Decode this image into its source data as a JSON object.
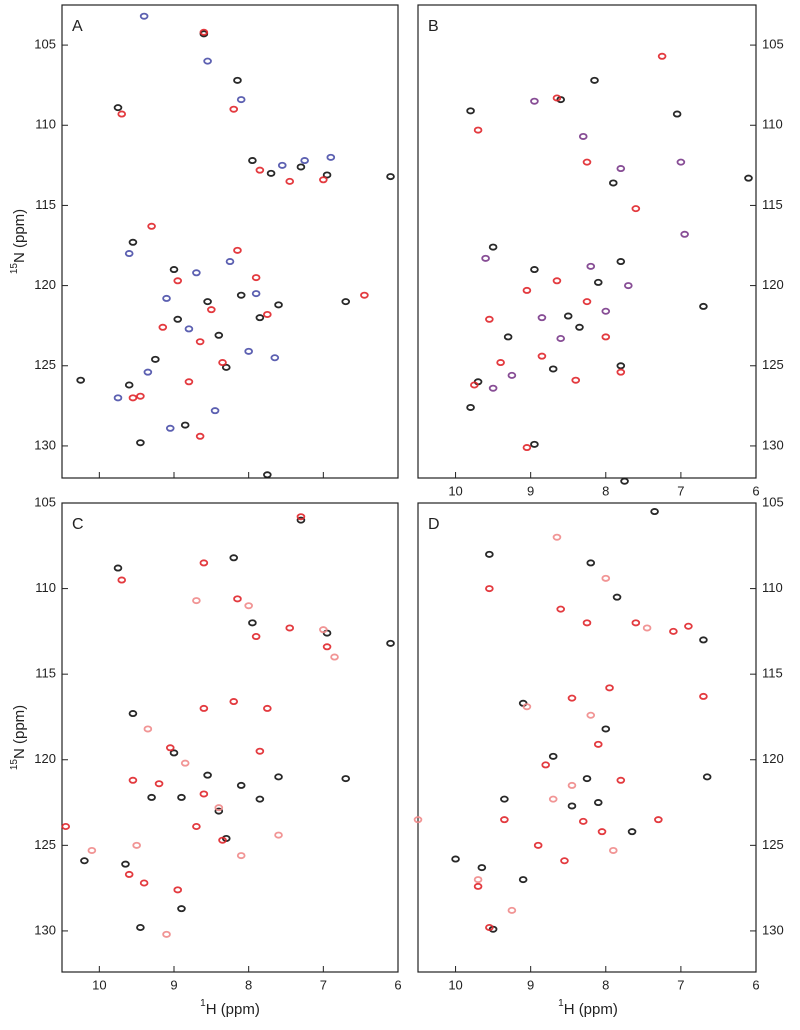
{
  "chart_data": [
    {
      "type": "scatter",
      "panel_label": "A",
      "xlim": [
        10.5,
        6
      ],
      "ylim": [
        132,
        102.5
      ],
      "xticks": [
        10,
        9,
        8,
        7,
        6
      ],
      "yticks": [
        105,
        110,
        115,
        120,
        125,
        130
      ],
      "ytick_side": "left",
      "show_xtick_labels": false,
      "ylabel_sup": "15",
      "ylabel": "N (ppm)",
      "series": [
        {
          "color": "#111111",
          "x": [
            9.75,
            8.6,
            8.15,
            7.95,
            7.7,
            7.3,
            6.95,
            6.1,
            9.55,
            9.0,
            8.55,
            8.1,
            7.85,
            8.4,
            9.25,
            9.6,
            10.25,
            8.85,
            8.3,
            7.6,
            6.7,
            9.45,
            8.95,
            7.75
          ],
          "values": [
            108.9,
            104.3,
            107.2,
            112.2,
            113.0,
            112.6,
            113.1,
            113.2,
            117.3,
            119.0,
            121.0,
            120.6,
            122.0,
            123.1,
            124.6,
            126.2,
            125.9,
            128.7,
            125.1,
            121.2,
            121.0,
            129.8,
            122.1,
            131.8
          ]
        },
        {
          "color": "#e0252a",
          "x": [
            9.7,
            8.6,
            8.2,
            7.85,
            7.45,
            7.0,
            6.45,
            9.3,
            8.95,
            8.5,
            8.15,
            7.75,
            8.65,
            9.15,
            9.55,
            8.35,
            8.8,
            7.9,
            9.45,
            8.65
          ],
          "values": [
            109.3,
            104.2,
            109.0,
            112.8,
            113.5,
            113.4,
            120.6,
            116.3,
            119.7,
            121.5,
            117.8,
            121.8,
            123.5,
            122.6,
            127.0,
            124.8,
            126.0,
            119.5,
            126.9,
            129.4
          ]
        },
        {
          "color": "#4a4fa8",
          "x": [
            9.4,
            8.55,
            8.1,
            7.55,
            7.25,
            6.9,
            9.6,
            9.1,
            8.7,
            8.25,
            7.9,
            8.0,
            8.8,
            9.35,
            9.75,
            8.45,
            7.65,
            9.05
          ],
          "values": [
            103.2,
            106.0,
            108.4,
            112.5,
            112.2,
            112.0,
            118.0,
            120.8,
            119.2,
            118.5,
            120.5,
            124.1,
            122.7,
            125.4,
            127.0,
            127.8,
            124.5,
            128.9
          ]
        }
      ]
    },
    {
      "type": "scatter",
      "panel_label": "B",
      "xlim": [
        10.5,
        6
      ],
      "ylim": [
        132,
        102.5
      ],
      "xticks": [
        10,
        9,
        8,
        7,
        6
      ],
      "yticks": [
        105,
        110,
        115,
        120,
        125,
        130
      ],
      "ytick_side": "right",
      "show_xtick_labels": true,
      "series": [
        {
          "color": "#111111",
          "x": [
            9.8,
            8.6,
            8.15,
            7.9,
            7.05,
            6.1,
            9.5,
            8.95,
            8.5,
            8.1,
            7.8,
            8.35,
            9.3,
            9.7,
            9.8,
            8.7,
            7.8,
            6.7,
            7.75,
            8.95
          ],
          "values": [
            109.1,
            108.4,
            107.2,
            113.6,
            109.3,
            113.3,
            117.6,
            119.0,
            121.9,
            119.8,
            118.5,
            122.6,
            123.2,
            126.0,
            127.6,
            125.2,
            125.0,
            121.3,
            132.2,
            129.9
          ]
        },
        {
          "color": "#e0252a",
          "x": [
            9.7,
            8.65,
            8.25,
            7.6,
            7.25,
            9.55,
            9.05,
            8.65,
            8.25,
            8.0,
            8.4,
            9.4,
            9.75,
            8.85,
            7.8,
            9.05
          ],
          "values": [
            110.3,
            108.3,
            112.3,
            115.2,
            105.7,
            122.1,
            120.3,
            119.7,
            121.0,
            123.2,
            125.9,
            124.8,
            126.2,
            124.4,
            125.4,
            130.1
          ]
        },
        {
          "color": "#7a3a8a",
          "x": [
            8.95,
            8.3,
            7.8,
            7.0,
            6.95,
            9.6,
            8.85,
            8.2,
            8.0,
            7.7,
            8.6,
            9.25,
            9.5
          ],
          "values": [
            108.5,
            110.7,
            112.7,
            112.3,
            116.8,
            118.3,
            122.0,
            118.8,
            121.6,
            120.0,
            123.3,
            125.6,
            126.4
          ]
        }
      ]
    },
    {
      "type": "scatter",
      "panel_label": "C",
      "xlim": [
        10.5,
        6
      ],
      "ylim": [
        132.4,
        105
      ],
      "xticks": [
        10,
        9,
        8,
        7,
        6
      ],
      "yticks": [
        105,
        110,
        115,
        120,
        125,
        130
      ],
      "ytick_side": "left",
      "show_xtick_labels": true,
      "ylabel_sup": "15",
      "ylabel": "N (ppm)",
      "xlabel_sup": "1",
      "xlabel": "H  (ppm)",
      "series": [
        {
          "color": "#111111",
          "x": [
            9.75,
            8.2,
            7.95,
            7.3,
            6.95,
            6.1,
            9.55,
            9.0,
            8.55,
            8.1,
            7.85,
            8.4,
            9.3,
            9.65,
            10.2,
            8.9,
            8.3,
            7.6,
            6.7,
            9.45,
            8.9
          ],
          "values": [
            108.8,
            108.2,
            112.0,
            106.0,
            112.6,
            113.2,
            117.3,
            119.6,
            120.9,
            121.5,
            122.3,
            123.0,
            122.2,
            126.1,
            125.9,
            128.7,
            124.6,
            121.0,
            121.1,
            129.8,
            122.2
          ]
        },
        {
          "color": "#e0252a",
          "x": [
            9.7,
            8.6,
            8.15,
            7.9,
            7.45,
            7.3,
            6.95,
            9.55,
            9.05,
            8.6,
            8.2,
            7.75,
            8.7,
            9.2,
            9.6,
            8.35,
            8.95,
            7.85,
            9.4,
            8.6,
            10.45
          ],
          "values": [
            109.5,
            108.5,
            110.6,
            112.8,
            112.3,
            105.8,
            113.4,
            121.2,
            119.3,
            117.0,
            116.6,
            117.0,
            123.9,
            121.4,
            126.7,
            124.7,
            127.6,
            119.5,
            127.2,
            122.0,
            123.9
          ]
        },
        {
          "color": "#f08a8a",
          "x": [
            8.7,
            8.0,
            7.0,
            6.85,
            9.35,
            8.85,
            8.4,
            7.6,
            8.1,
            9.5,
            10.1,
            9.1
          ],
          "values": [
            110.7,
            111.0,
            112.4,
            114.0,
            118.2,
            120.2,
            122.8,
            124.4,
            125.6,
            125.0,
            125.3,
            130.2
          ]
        }
      ]
    },
    {
      "type": "scatter",
      "panel_label": "D",
      "xlim": [
        10.5,
        6
      ],
      "ylim": [
        132.4,
        105
      ],
      "xticks": [
        10,
        9,
        8,
        7,
        6
      ],
      "yticks": [
        105,
        110,
        115,
        120,
        125,
        130
      ],
      "ytick_side": "right",
      "show_xtick_labels": true,
      "xlabel_sup": "1",
      "xlabel": "H  (ppm)",
      "series": [
        {
          "color": "#111111",
          "x": [
            9.55,
            8.2,
            7.85,
            7.35,
            6.7,
            9.1,
            8.7,
            8.25,
            8.0,
            7.65,
            8.45,
            9.35,
            9.65,
            10.0,
            9.5,
            8.1,
            6.65,
            9.1
          ],
          "values": [
            108.0,
            108.5,
            110.5,
            105.5,
            113.0,
            116.7,
            119.8,
            121.1,
            118.2,
            124.2,
            122.7,
            122.3,
            126.3,
            125.8,
            129.9,
            122.5,
            121.0,
            127.0
          ]
        },
        {
          "color": "#e0252a",
          "x": [
            9.55,
            8.6,
            8.25,
            7.95,
            7.6,
            7.1,
            6.9,
            8.8,
            8.45,
            8.1,
            7.8,
            8.3,
            8.9,
            9.35,
            9.7,
            8.55,
            8.05,
            7.3,
            6.7,
            9.55
          ],
          "values": [
            110.0,
            111.2,
            112.0,
            115.8,
            112.0,
            112.5,
            112.2,
            120.3,
            116.4,
            119.1,
            121.2,
            123.6,
            125.0,
            123.5,
            127.4,
            125.9,
            124.2,
            123.5,
            116.3,
            129.8
          ]
        },
        {
          "color": "#f08a8a",
          "x": [
            8.65,
            8.0,
            7.45,
            9.05,
            8.7,
            8.2,
            7.9,
            9.7,
            9.25,
            10.5,
            8.45
          ],
          "values": [
            107.0,
            109.4,
            112.3,
            116.9,
            122.3,
            117.4,
            125.3,
            127.0,
            128.8,
            123.5,
            121.5
          ]
        }
      ]
    }
  ]
}
